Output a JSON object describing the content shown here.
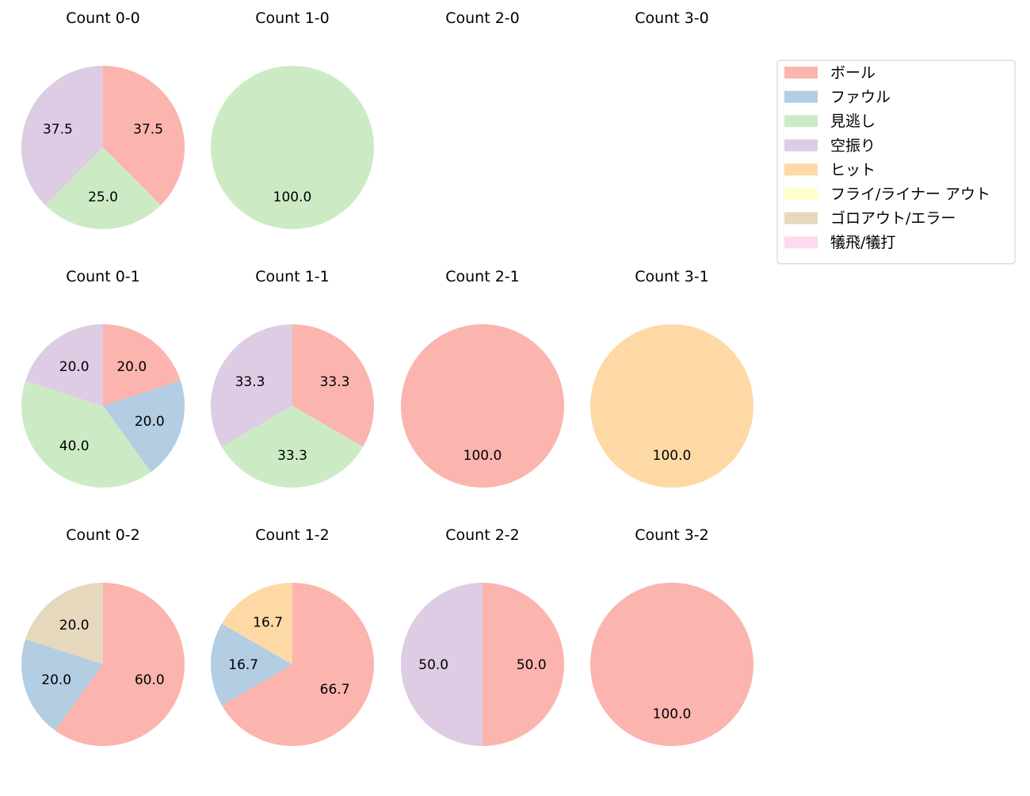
{
  "chart_data": {
    "type": "pie",
    "legend": {
      "placement": "top-right",
      "entries": [
        {
          "label": "ボール",
          "color": "#fbb4ae"
        },
        {
          "label": "ファウル",
          "color": "#b3cde3"
        },
        {
          "label": "見逃し",
          "color": "#ccebc5"
        },
        {
          "label": "空振り",
          "color": "#decbe4"
        },
        {
          "label": "ヒット",
          "color": "#fed9a6"
        },
        {
          "label": "フライ/ライナー アウト",
          "color": "#ffffcc"
        },
        {
          "label": "ゴロアウト/エラー",
          "color": "#e5d8bd"
        },
        {
          "label": "犠飛/犠打",
          "color": "#fddaec"
        }
      ]
    },
    "charts": [
      {
        "title": "Count 0-0",
        "row": 0,
        "col": 0,
        "slices": [
          {
            "category": "ボール",
            "value": 37.5,
            "label": "37.5"
          },
          {
            "category": "見逃し",
            "value": 25.0,
            "label": "25.0"
          },
          {
            "category": "空振り",
            "value": 37.5,
            "label": "37.5"
          }
        ]
      },
      {
        "title": "Count 1-0",
        "row": 0,
        "col": 1,
        "slices": [
          {
            "category": "見逃し",
            "value": 100.0,
            "label": "100.0"
          }
        ]
      },
      {
        "title": "Count 2-0",
        "row": 0,
        "col": 2,
        "slices": []
      },
      {
        "title": "Count 3-0",
        "row": 0,
        "col": 3,
        "slices": []
      },
      {
        "title": "Count 0-1",
        "row": 1,
        "col": 0,
        "slices": [
          {
            "category": "ボール",
            "value": 20.0,
            "label": "20.0"
          },
          {
            "category": "ファウル",
            "value": 20.0,
            "label": "20.0"
          },
          {
            "category": "見逃し",
            "value": 40.0,
            "label": "40.0"
          },
          {
            "category": "空振り",
            "value": 20.0,
            "label": "20.0"
          }
        ]
      },
      {
        "title": "Count 1-1",
        "row": 1,
        "col": 1,
        "slices": [
          {
            "category": "ボール",
            "value": 33.3,
            "label": "33.3"
          },
          {
            "category": "見逃し",
            "value": 33.3,
            "label": "33.3"
          },
          {
            "category": "空振り",
            "value": 33.3,
            "label": "33.3"
          }
        ]
      },
      {
        "title": "Count 2-1",
        "row": 1,
        "col": 2,
        "slices": [
          {
            "category": "ボール",
            "value": 100.0,
            "label": "100.0"
          }
        ]
      },
      {
        "title": "Count 3-1",
        "row": 1,
        "col": 3,
        "slices": [
          {
            "category": "ヒット",
            "value": 100.0,
            "label": "100.0"
          }
        ]
      },
      {
        "title": "Count 0-2",
        "row": 2,
        "col": 0,
        "slices": [
          {
            "category": "ボール",
            "value": 60.0,
            "label": "60.0"
          },
          {
            "category": "ファウル",
            "value": 20.0,
            "label": "20.0"
          },
          {
            "category": "ゴロアウト/エラー",
            "value": 20.0,
            "label": "20.0"
          }
        ]
      },
      {
        "title": "Count 1-2",
        "row": 2,
        "col": 1,
        "slices": [
          {
            "category": "ボール",
            "value": 66.7,
            "label": "66.7"
          },
          {
            "category": "ファウル",
            "value": 16.7,
            "label": "16.7"
          },
          {
            "category": "ヒット",
            "value": 16.7,
            "label": "16.7"
          }
        ]
      },
      {
        "title": "Count 2-2",
        "row": 2,
        "col": 2,
        "slices": [
          {
            "category": "ボール",
            "value": 50.0,
            "label": "50.0"
          },
          {
            "category": "空振り",
            "value": 50.0,
            "label": "50.0"
          }
        ]
      },
      {
        "title": "Count 3-2",
        "row": 2,
        "col": 3,
        "slices": [
          {
            "category": "ボール",
            "value": 100.0,
            "label": "100.0"
          }
        ]
      }
    ]
  }
}
